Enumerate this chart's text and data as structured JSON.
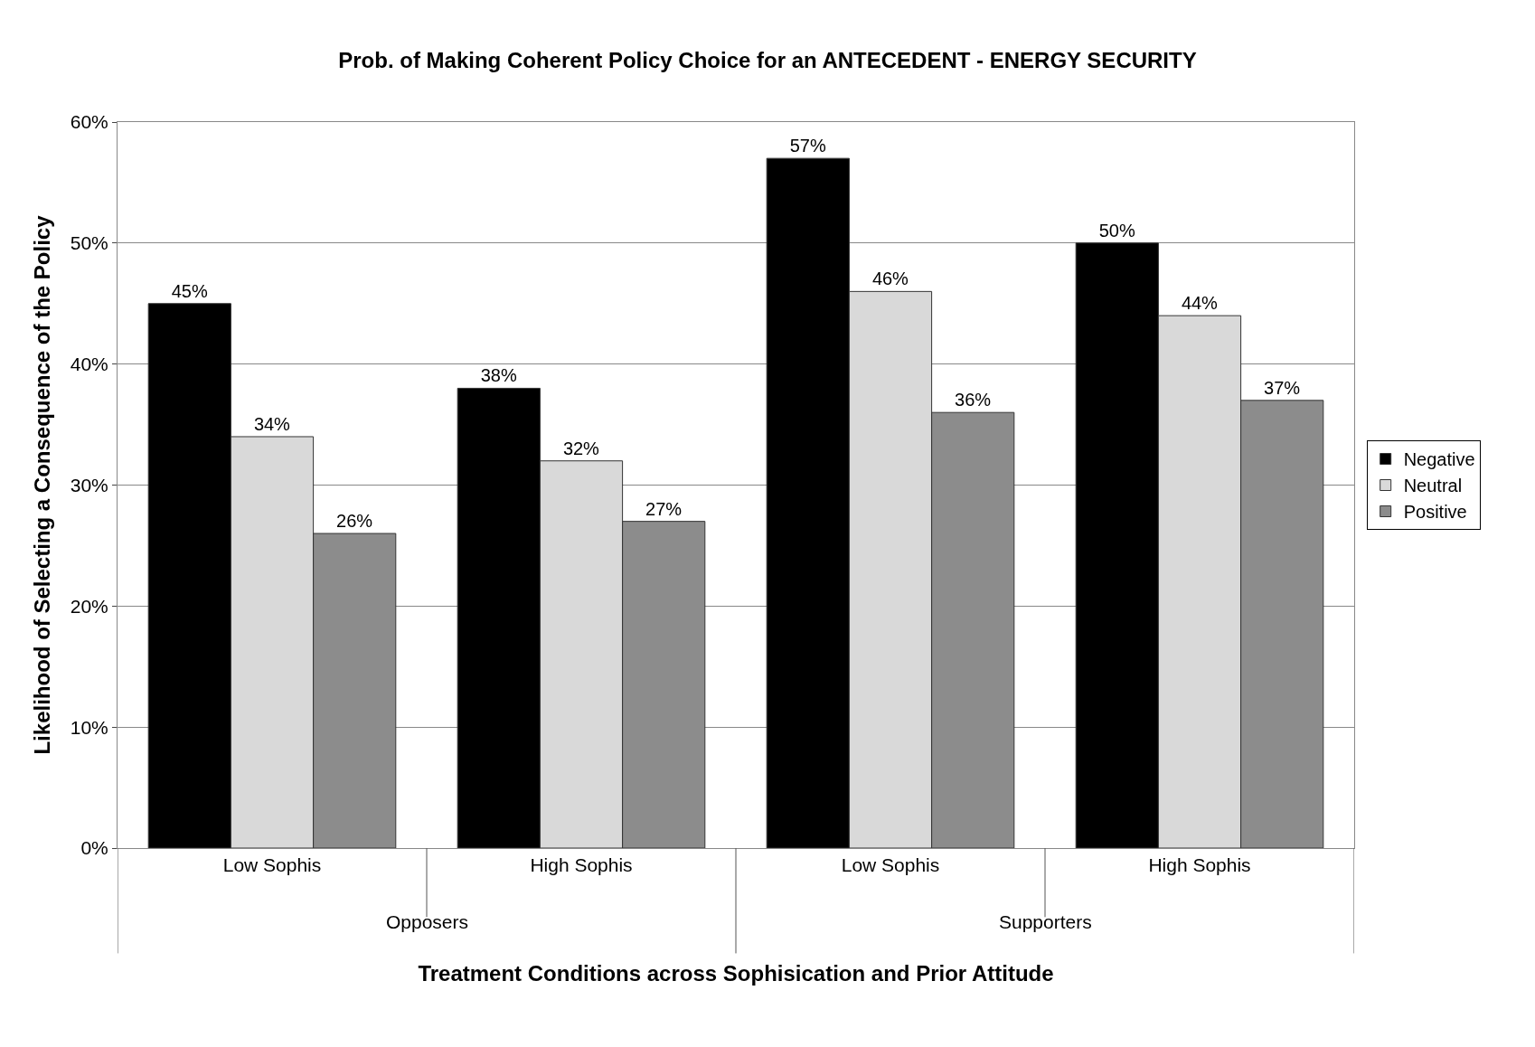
{
  "chart_data": {
    "type": "bar",
    "title": "Prob. of Making Coherent Policy Choice for an ANTECEDENT - ENERGY SECURITY",
    "xlabel": "Treatment Conditions across Sophisication and Prior Attitude",
    "ylabel": "Likelihood of Selecting a Consequence of the Policy",
    "categories": [
      "Low Sophis",
      "High Sophis",
      "Low Sophis",
      "High Sophis"
    ],
    "annotations": [
      "Opposers",
      "Supporters"
    ],
    "series": [
      {
        "name": "Negative",
        "color": "#000000",
        "values": [
          45,
          38,
          57,
          50
        ],
        "value_labels": [
          "45%",
          "38%",
          "57%",
          "50%"
        ]
      },
      {
        "name": "Neutral",
        "color": "#d9d9d9",
        "values": [
          34,
          32,
          46,
          44
        ],
        "value_labels": [
          "34%",
          "32%",
          "46%",
          "44%"
        ]
      },
      {
        "name": "Positive",
        "color": "#8c8c8c",
        "values": [
          26,
          27,
          36,
          37
        ],
        "value_labels": [
          "26%",
          "27%",
          "36%",
          "37%"
        ]
      }
    ],
    "ylim": [
      0,
      60
    ],
    "yticks": [
      {
        "value": 0,
        "label": "0%"
      },
      {
        "value": 10,
        "label": "10%"
      },
      {
        "value": 20,
        "label": "20%"
      },
      {
        "value": 30,
        "label": "30%"
      },
      {
        "value": 40,
        "label": "40%"
      },
      {
        "value": 50,
        "label": "50%"
      },
      {
        "value": 60,
        "label": "60%"
      }
    ],
    "grid": "y",
    "legend": "right"
  }
}
